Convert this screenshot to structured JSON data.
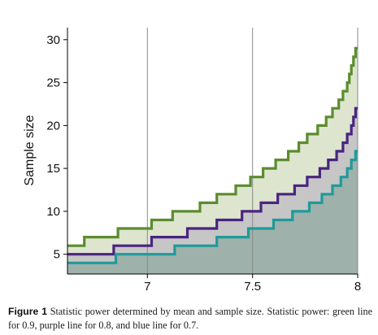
{
  "chart_data": {
    "type": "area",
    "title": "",
    "xlabel": "",
    "ylabel": "Sample size",
    "xlim": [
      6.62,
      8.0
    ],
    "ylim": [
      2.7,
      31.4
    ],
    "x_ticks": [
      7,
      7.5,
      8
    ],
    "x_tick_labels": [
      "7",
      "7.5",
      "8"
    ],
    "y_ticks": [
      5,
      10,
      15,
      20,
      25,
      30
    ],
    "y_tick_labels": [
      "5",
      "10",
      "15",
      "20",
      "25",
      "30"
    ],
    "grid": "vertical",
    "legend": "none",
    "series": [
      {
        "color": "#5b8c2e",
        "fill": "#dde5cf",
        "steps": [
          [
            6.62,
            6
          ],
          [
            6.7,
            7
          ],
          [
            6.86,
            8
          ],
          [
            7.02,
            9
          ],
          [
            7.12,
            10
          ],
          [
            7.25,
            11
          ],
          [
            7.33,
            12
          ],
          [
            7.42,
            13
          ],
          [
            7.49,
            14
          ],
          [
            7.55,
            15
          ],
          [
            7.61,
            16
          ],
          [
            7.67,
            17
          ],
          [
            7.72,
            18
          ],
          [
            7.76,
            19
          ],
          [
            7.81,
            20
          ],
          [
            7.85,
            21
          ],
          [
            7.88,
            22
          ],
          [
            7.91,
            23
          ],
          [
            7.93,
            24
          ],
          [
            7.95,
            25
          ],
          [
            7.96,
            26
          ],
          [
            7.97,
            27
          ],
          [
            7.98,
            28
          ],
          [
            7.99,
            29
          ],
          [
            8.0,
            29
          ]
        ]
      },
      {
        "color": "#4a2480",
        "fill": "#c7c6c6",
        "steps": [
          [
            6.62,
            5
          ],
          [
            6.84,
            6
          ],
          [
            7.02,
            7
          ],
          [
            7.19,
            8
          ],
          [
            7.33,
            9
          ],
          [
            7.45,
            10
          ],
          [
            7.54,
            11
          ],
          [
            7.62,
            12
          ],
          [
            7.7,
            13
          ],
          [
            7.76,
            14
          ],
          [
            7.82,
            15
          ],
          [
            7.86,
            16
          ],
          [
            7.9,
            17
          ],
          [
            7.93,
            18
          ],
          [
            7.95,
            19
          ],
          [
            7.97,
            20
          ],
          [
            7.98,
            21
          ],
          [
            7.99,
            22
          ],
          [
            8.0,
            22
          ]
        ]
      },
      {
        "color": "#1f9a9a",
        "fill": "#9fb1ab",
        "steps": [
          [
            6.62,
            4
          ],
          [
            6.85,
            5
          ],
          [
            7.13,
            6
          ],
          [
            7.33,
            7
          ],
          [
            7.48,
            8
          ],
          [
            7.6,
            9
          ],
          [
            7.69,
            10
          ],
          [
            7.77,
            11
          ],
          [
            7.83,
            12
          ],
          [
            7.88,
            13
          ],
          [
            7.92,
            14
          ],
          [
            7.95,
            15
          ],
          [
            7.97,
            16
          ],
          [
            7.99,
            17
          ],
          [
            8.0,
            17
          ]
        ]
      }
    ]
  },
  "caption": {
    "label": "Figure 1",
    "text": " Statistic power determined by mean and sample size. Statistic power: green line for 0.9, purple line for 0.8, and blue line for 0.7."
  }
}
